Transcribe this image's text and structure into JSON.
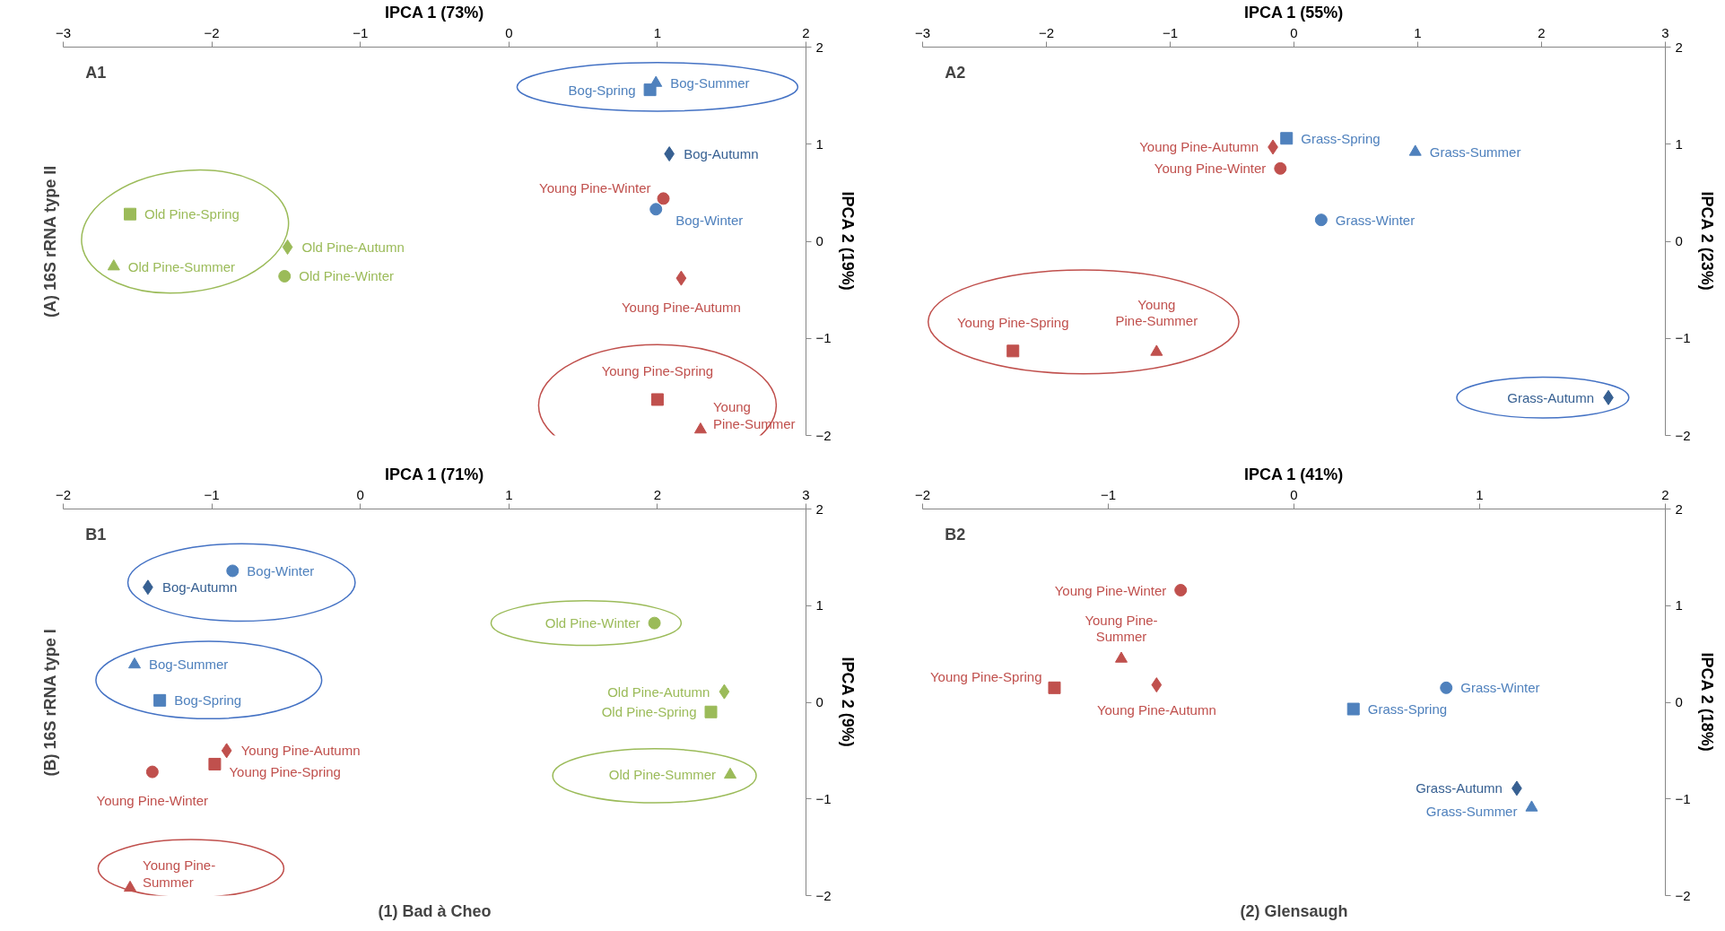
{
  "chart_data": [
    {
      "type": "scatter",
      "xlabel": "IPCA 1 (73%)",
      "ylabel": "IPCA 2 (19%)",
      "xlim": [
        -3,
        2
      ],
      "ylim": [
        -2,
        2
      ],
      "xticks": [
        -3,
        -2,
        -1,
        0,
        1,
        2
      ],
      "yticks": [
        -2,
        -1,
        0,
        1,
        2
      ],
      "annotations": [
        "A1",
        "(A) 16S rRNA type II"
      ],
      "series": [
        {
          "name": "Bog-Spring",
          "color": "#4f81bd",
          "marker": "square",
          "x": [
            0.95
          ],
          "values": [
            1.56
          ]
        },
        {
          "name": "Bog-Summer",
          "color": "#4f81bd",
          "marker": "triangle",
          "x": [
            0.99
          ],
          "values": [
            1.63
          ]
        },
        {
          "name": "Bog-Autumn",
          "color": "#376092",
          "marker": "diamond",
          "x": [
            1.08
          ],
          "values": [
            0.9
          ]
        },
        {
          "name": "Bog-Winter",
          "color": "#4f81bd",
          "marker": "circle",
          "x": [
            0.99
          ],
          "values": [
            0.33
          ]
        },
        {
          "name": "Young Pine-Winter",
          "color": "#c0504d",
          "marker": "circle",
          "x": [
            1.04
          ],
          "values": [
            0.44
          ]
        },
        {
          "name": "Young Pine-Autumn",
          "color": "#c0504d",
          "marker": "diamond",
          "x": [
            1.16
          ],
          "values": [
            -0.38
          ]
        },
        {
          "name": "Young Pine-Spring",
          "color": "#c0504d",
          "marker": "square",
          "x": [
            1.0
          ],
          "values": [
            -1.63
          ]
        },
        {
          "name": "Young Pine-Summer",
          "color": "#c0504d",
          "marker": "triangle",
          "x": [
            1.29
          ],
          "values": [
            -1.94
          ]
        },
        {
          "name": "Old Pine-Spring",
          "color": "#9bbb59",
          "marker": "square",
          "x": [
            -2.55
          ],
          "values": [
            0.28
          ]
        },
        {
          "name": "Old Pine-Summer",
          "color": "#9bbb59",
          "marker": "triangle",
          "x": [
            -2.66
          ],
          "values": [
            -0.26
          ]
        },
        {
          "name": "Old Pine-Autumn",
          "color": "#9bbb59",
          "marker": "diamond",
          "x": [
            -1.49
          ],
          "values": [
            -0.06
          ]
        },
        {
          "name": "Old Pine-Winter",
          "color": "#9bbb59",
          "marker": "circle",
          "x": [
            -1.51
          ],
          "values": [
            -0.36
          ]
        }
      ]
    },
    {
      "type": "scatter",
      "xlabel": "IPCA 1 (55%)",
      "ylabel": "IPCA 2 (23%)",
      "xlim": [
        -3,
        3
      ],
      "ylim": [
        -2,
        2
      ],
      "xticks": [
        -3,
        -2,
        -1,
        0,
        1,
        2,
        3
      ],
      "yticks": [
        -2,
        -1,
        0,
        1,
        2
      ],
      "annotations": [
        "A2"
      ],
      "series": [
        {
          "name": "Grass-Spring",
          "color": "#4f81bd",
          "marker": "square",
          "x": [
            -0.06
          ],
          "values": [
            1.06
          ]
        },
        {
          "name": "Grass-Summer",
          "color": "#4f81bd",
          "marker": "triangle",
          "x": [
            0.98
          ],
          "values": [
            0.92
          ]
        },
        {
          "name": "Grass-Winter",
          "color": "#4f81bd",
          "marker": "circle",
          "x": [
            0.22
          ],
          "values": [
            0.22
          ]
        },
        {
          "name": "Grass-Autumn",
          "color": "#376092",
          "marker": "diamond",
          "x": [
            2.54
          ],
          "values": [
            -1.61
          ]
        },
        {
          "name": "Young Pine-Autumn",
          "color": "#c0504d",
          "marker": "diamond",
          "x": [
            -0.17
          ],
          "values": [
            0.97
          ]
        },
        {
          "name": "Young Pine-Winter",
          "color": "#c0504d",
          "marker": "circle",
          "x": [
            -0.11
          ],
          "values": [
            0.75
          ]
        },
        {
          "name": "Young Pine-Spring",
          "color": "#c0504d",
          "marker": "square",
          "x": [
            -2.27
          ],
          "values": [
            -1.13
          ]
        },
        {
          "name": "Young Pine-Summer",
          "color": "#c0504d",
          "marker": "triangle",
          "x": [
            -1.11
          ],
          "values": [
            -1.14
          ]
        }
      ]
    },
    {
      "type": "scatter",
      "xlabel": "IPCA 1 (71%)",
      "ylabel": "IPCA 2 (9%)",
      "xlim": [
        -2,
        3
      ],
      "ylim": [
        -2,
        2
      ],
      "xticks": [
        -2,
        -1,
        0,
        1,
        2,
        3
      ],
      "yticks": [
        -2,
        -1,
        0,
        1,
        2
      ],
      "annotations": [
        "B1",
        "(B) 16S rRNA type I",
        "(1) Bad à Cheo"
      ],
      "series": [
        {
          "name": "Bog-Winter",
          "color": "#4f81bd",
          "marker": "circle",
          "x": [
            -0.86
          ],
          "values": [
            1.36
          ]
        },
        {
          "name": "Bog-Autumn",
          "color": "#376092",
          "marker": "diamond",
          "x": [
            -1.43
          ],
          "values": [
            1.19
          ]
        },
        {
          "name": "Bog-Summer",
          "color": "#4f81bd",
          "marker": "triangle",
          "x": [
            -1.52
          ],
          "values": [
            0.39
          ]
        },
        {
          "name": "Bog-Spring",
          "color": "#4f81bd",
          "marker": "square",
          "x": [
            -1.35
          ],
          "values": [
            0.02
          ]
        },
        {
          "name": "Young Pine-Autumn",
          "color": "#c0504d",
          "marker": "diamond",
          "x": [
            -0.9
          ],
          "values": [
            -0.5
          ]
        },
        {
          "name": "Young Pine-Spring",
          "color": "#c0504d",
          "marker": "square",
          "x": [
            -0.98
          ],
          "values": [
            -0.64
          ]
        },
        {
          "name": "Young Pine-Winter",
          "color": "#c0504d",
          "marker": "circle",
          "x": [
            -1.4
          ],
          "values": [
            -0.72
          ]
        },
        {
          "name": "Young Pine-Summer",
          "color": "#c0504d",
          "marker": "triangle",
          "x": [
            -1.55
          ],
          "values": [
            -1.92
          ]
        },
        {
          "name": "Old Pine-Winter",
          "color": "#9bbb59",
          "marker": "circle",
          "x": [
            1.98
          ],
          "values": [
            0.82
          ]
        },
        {
          "name": "Old Pine-Autumn",
          "color": "#9bbb59",
          "marker": "diamond",
          "x": [
            2.45
          ],
          "values": [
            0.11
          ]
        },
        {
          "name": "Old Pine-Spring",
          "color": "#9bbb59",
          "marker": "square",
          "x": [
            2.36
          ],
          "values": [
            -0.1
          ]
        },
        {
          "name": "Old Pine-Summer",
          "color": "#9bbb59",
          "marker": "triangle",
          "x": [
            2.49
          ],
          "values": [
            -0.75
          ]
        }
      ]
    },
    {
      "type": "scatter",
      "xlabel": "IPCA 1 (41%)",
      "ylabel": "IPCA 2 (18%)",
      "xlim": [
        -2,
        2
      ],
      "ylim": [
        -2,
        2
      ],
      "xticks": [
        -2,
        -1,
        0,
        1,
        2
      ],
      "yticks": [
        -2,
        -1,
        0,
        1,
        2
      ],
      "annotations": [
        "B2",
        "(2) Glensaugh"
      ],
      "series": [
        {
          "name": "Young Pine-Winter",
          "color": "#c0504d",
          "marker": "circle",
          "x": [
            -0.61
          ],
          "values": [
            1.16
          ]
        },
        {
          "name": "Young Pine-Summer",
          "color": "#c0504d",
          "marker": "triangle",
          "x": [
            -0.93
          ],
          "values": [
            0.45
          ]
        },
        {
          "name": "Young Pine-Spring",
          "color": "#c0504d",
          "marker": "square",
          "x": [
            -1.29
          ],
          "values": [
            0.15
          ]
        },
        {
          "name": "Young Pine-Autumn",
          "color": "#c0504d",
          "marker": "diamond",
          "x": [
            -0.74
          ],
          "values": [
            0.18
          ]
        },
        {
          "name": "Grass-Winter",
          "color": "#4f81bd",
          "marker": "circle",
          "x": [
            0.82
          ],
          "values": [
            0.15
          ]
        },
        {
          "name": "Grass-Spring",
          "color": "#4f81bd",
          "marker": "square",
          "x": [
            0.32
          ],
          "values": [
            -0.07
          ]
        },
        {
          "name": "Grass-Autumn",
          "color": "#376092",
          "marker": "diamond",
          "x": [
            1.2
          ],
          "values": [
            -0.89
          ]
        },
        {
          "name": "Grass-Summer",
          "color": "#4f81bd",
          "marker": "triangle",
          "x": [
            1.28
          ],
          "values": [
            -1.09
          ]
        }
      ]
    }
  ]
}
